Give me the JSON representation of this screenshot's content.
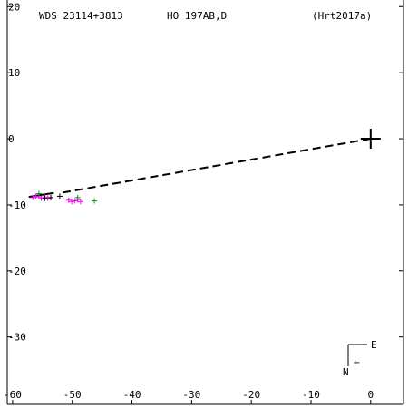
{
  "header": {
    "wds": "WDS 23114+3813",
    "discoverer": "HO  197AB,D",
    "reference": "(Hrt2017a)"
  },
  "compass": {
    "east_label": "E",
    "north_label": "N",
    "arrow_glyph": "←"
  },
  "colors": {
    "axes": "#000000",
    "magenta": "#ff00ff",
    "green": "#00a000",
    "black": "#000000"
  },
  "chart_data": {
    "type": "scatter",
    "title": "",
    "xlabel": "",
    "ylabel": "",
    "xlim": [
      -60.9,
      5.5
    ],
    "ylim": [
      -40.2,
      21
    ],
    "x_ticks": [
      -60,
      -50,
      -40,
      -30,
      -20,
      -10,
      0
    ],
    "x_tick_labels": [
      "-60",
      "-50",
      "-40",
      "-30",
      "-20",
      "-10",
      "0"
    ],
    "y_ticks": [
      20,
      10,
      0,
      -10,
      -20,
      -30
    ],
    "y_tick_labels": [
      "20",
      "10",
      "0",
      "-10",
      "-20",
      "-30"
    ],
    "primary_marker": {
      "x": 0,
      "y": 0,
      "symbol": "plus"
    },
    "predicted_line": {
      "from": [
        0,
        0
      ],
      "to": [
        -52,
        -8.2
      ],
      "style": "dashed"
    },
    "orbit_segment": {
      "from": [
        -57.3,
        -8.8
      ],
      "to": [
        -53.1,
        -8.2
      ]
    },
    "series": [
      {
        "marker": "plus",
        "color": "magenta",
        "points": [
          [
            -56.6,
            -8.9
          ],
          [
            -56.1,
            -8.7
          ],
          [
            -55.6,
            -8.8
          ],
          [
            -55.2,
            -9.0
          ],
          [
            -54.6,
            -8.8
          ],
          [
            -54.1,
            -9.0
          ],
          [
            -53.6,
            -8.9
          ],
          [
            -50.6,
            -9.3
          ],
          [
            -50.1,
            -9.5
          ],
          [
            -49.6,
            -9.4
          ],
          [
            -49.1,
            -9.2
          ],
          [
            -48.6,
            -9.5
          ]
        ]
      },
      {
        "marker": "plus",
        "color": "green",
        "points": [
          [
            -55.6,
            -8.3
          ],
          [
            -49.1,
            -8.9
          ],
          [
            -46.3,
            -9.4
          ]
        ]
      },
      {
        "marker": "plus",
        "color": "black",
        "points": [
          [
            -54.6,
            -9.0
          ],
          [
            -53.6,
            -8.9
          ],
          [
            -52.1,
            -8.7
          ]
        ]
      }
    ]
  }
}
